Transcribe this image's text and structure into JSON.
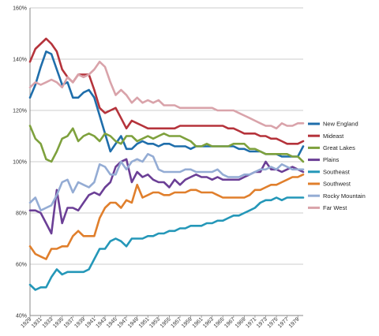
{
  "chart_data": {
    "type": "line",
    "title": "",
    "xlabel": "",
    "ylabel": "",
    "ylim": [
      40,
      160
    ],
    "y_ticks": [
      "40%",
      "60%",
      "80%",
      "100%",
      "120%",
      "140%",
      "160%"
    ],
    "x_tick_labels": [
      "1929",
      "1931",
      "1933",
      "1935",
      "1937",
      "1939",
      "1941",
      "1943",
      "1945",
      "1947",
      "1949",
      "1951",
      "1953",
      "1955",
      "1957",
      "1959",
      "1961",
      "1963",
      "1965",
      "1967",
      "1969",
      "1971",
      "1973",
      "1975",
      "1977",
      "1979"
    ],
    "grid": "horizontal",
    "legend_position": "right",
    "x": [
      1929,
      1930,
      1931,
      1932,
      1933,
      1934,
      1935,
      1936,
      1937,
      1938,
      1939,
      1940,
      1941,
      1942,
      1943,
      1944,
      1945,
      1946,
      1947,
      1948,
      1949,
      1950,
      1951,
      1952,
      1953,
      1954,
      1955,
      1956,
      1957,
      1958,
      1959,
      1960,
      1961,
      1962,
      1963,
      1964,
      1965,
      1966,
      1967,
      1968,
      1969,
      1970,
      1971,
      1972,
      1973,
      1974,
      1975,
      1976,
      1977,
      1978,
      1979,
      1980
    ],
    "series": [
      {
        "name": "New England",
        "color": "#1f6eab",
        "values": [
          125,
          130,
          137,
          143,
          142,
          136,
          130,
          131,
          125,
          125,
          127,
          128,
          125,
          118,
          111,
          104,
          107,
          110,
          105,
          105,
          107,
          108,
          107,
          107,
          106,
          107,
          107,
          106,
          106,
          106,
          105,
          106,
          106,
          106,
          106,
          106,
          106,
          106,
          106,
          105,
          105,
          104,
          104,
          104,
          103,
          103,
          103,
          102,
          102,
          102,
          102,
          106
        ]
      },
      {
        "name": "Mideast",
        "color": "#b5333b",
        "values": [
          139,
          144,
          146,
          148,
          146,
          143,
          136,
          133,
          131,
          134,
          134,
          134,
          128,
          121,
          119,
          120,
          121,
          117,
          113,
          116,
          115,
          114,
          113,
          113,
          113,
          113,
          113,
          113,
          114,
          114,
          114,
          114,
          114,
          114,
          114,
          114,
          114,
          113,
          113,
          112,
          111,
          111,
          111,
          110,
          110,
          109,
          109,
          108,
          107,
          107,
          107,
          108
        ]
      },
      {
        "name": "Great Lakes",
        "color": "#7ea13d",
        "values": [
          114,
          109,
          107,
          101,
          100,
          104,
          109,
          110,
          113,
          108,
          110,
          111,
          110,
          108,
          111,
          110,
          108,
          107,
          110,
          110,
          108,
          109,
          110,
          109,
          110,
          111,
          110,
          110,
          110,
          109,
          108,
          106,
          106,
          107,
          106,
          106,
          106,
          106,
          107,
          107,
          107,
          105,
          105,
          104,
          103,
          103,
          103,
          103,
          103,
          102,
          102,
          100
        ]
      },
      {
        "name": "Plains",
        "color": "#6b3f96",
        "values": [
          81,
          81,
          80,
          76,
          72,
          89,
          76,
          82,
          82,
          81,
          84,
          87,
          88,
          87,
          90,
          92,
          98,
          100,
          101,
          92,
          96,
          94,
          95,
          93,
          92,
          92,
          90,
          93,
          91,
          93,
          94,
          95,
          94,
          94,
          93,
          94,
          93,
          93,
          93,
          93,
          94,
          95,
          96,
          96,
          100,
          97,
          97,
          96,
          97,
          98,
          97,
          96
        ]
      },
      {
        "name": "Southeast",
        "color": "#2497b8",
        "values": [
          52,
          50,
          51,
          51,
          55,
          58,
          56,
          57,
          57,
          57,
          57,
          58,
          62,
          66,
          66,
          69,
          70,
          69,
          67,
          70,
          70,
          70,
          71,
          71,
          72,
          72,
          73,
          73,
          74,
          74,
          75,
          75,
          75,
          76,
          76,
          77,
          77,
          78,
          79,
          79,
          80,
          81,
          82,
          84,
          85,
          85,
          86,
          85,
          86,
          86,
          86,
          86
        ]
      },
      {
        "name": "Southwest",
        "color": "#e07f2c",
        "values": [
          67,
          64,
          63,
          62,
          66,
          66,
          67,
          67,
          71,
          73,
          71,
          71,
          71,
          78,
          82,
          84,
          84,
          82,
          85,
          84,
          91,
          86,
          87,
          88,
          88,
          87,
          87,
          88,
          88,
          88,
          89,
          89,
          88,
          88,
          88,
          87,
          86,
          86,
          86,
          86,
          86,
          87,
          89,
          89,
          90,
          91,
          91,
          92,
          93,
          94,
          94,
          95
        ]
      },
      {
        "name": "Rocky Mountain",
        "color": "#94acd4",
        "values": [
          84,
          86,
          81,
          82,
          83,
          87,
          92,
          93,
          88,
          92,
          91,
          90,
          92,
          99,
          98,
          95,
          95,
          100,
          97,
          100,
          101,
          100,
          103,
          102,
          97,
          96,
          96,
          96,
          96,
          97,
          97,
          96,
          96,
          96,
          96,
          97,
          95,
          94,
          94,
          94,
          95,
          95,
          96,
          97,
          97,
          98,
          97,
          99,
          98,
          97,
          97,
          97
        ]
      },
      {
        "name": "Far West",
        "color": "#d9a3aa",
        "values": [
          129,
          131,
          130,
          131,
          132,
          131,
          129,
          133,
          131,
          134,
          133,
          134,
          136,
          139,
          137,
          131,
          126,
          128,
          126,
          123,
          125,
          123,
          124,
          123,
          124,
          122,
          122,
          122,
          121,
          121,
          121,
          121,
          121,
          121,
          121,
          120,
          120,
          120,
          120,
          119,
          118,
          117,
          116,
          115,
          114,
          114,
          113,
          115,
          114,
          114,
          115,
          115
        ]
      }
    ]
  }
}
